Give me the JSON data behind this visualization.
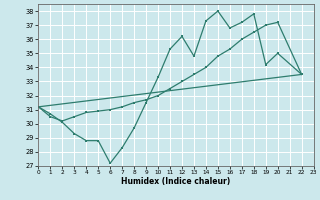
{
  "xlabel": "Humidex (Indice chaleur)",
  "bg_color": "#cce8ec",
  "grid_color": "#ffffff",
  "line_color": "#2e7d6e",
  "xlim": [
    0,
    23
  ],
  "ylim": [
    27,
    38.5
  ],
  "xticks": [
    0,
    1,
    2,
    3,
    4,
    5,
    6,
    7,
    8,
    9,
    10,
    11,
    12,
    13,
    14,
    15,
    16,
    17,
    18,
    19,
    20,
    21,
    22,
    23
  ],
  "yticks": [
    27,
    28,
    29,
    30,
    31,
    32,
    33,
    34,
    35,
    36,
    37,
    38
  ],
  "line1_x": [
    0,
    1,
    2,
    3,
    4,
    5,
    6,
    7,
    8,
    9,
    10,
    11,
    12,
    13,
    14,
    15,
    16,
    17,
    18,
    19,
    20,
    22
  ],
  "line1_y": [
    31.2,
    30.7,
    30.1,
    29.3,
    28.8,
    28.8,
    27.2,
    28.3,
    29.7,
    31.5,
    33.3,
    35.3,
    36.2,
    34.8,
    37.3,
    38.0,
    36.8,
    37.2,
    37.8,
    34.2,
    35.0,
    33.5
  ],
  "line2_x": [
    0,
    22
  ],
  "line2_y": [
    31.2,
    33.5
  ],
  "line3_x": [
    0,
    1,
    2,
    3,
    4,
    5,
    6,
    7,
    8,
    9,
    10,
    11,
    12,
    13,
    14,
    15,
    16,
    17,
    18,
    19,
    20,
    22
  ],
  "line3_y": [
    31.2,
    30.5,
    30.2,
    30.5,
    30.8,
    30.9,
    31.0,
    31.2,
    31.5,
    31.7,
    32.0,
    32.5,
    33.0,
    33.5,
    34.0,
    34.8,
    35.3,
    36.0,
    36.5,
    37.0,
    37.2,
    33.5
  ]
}
